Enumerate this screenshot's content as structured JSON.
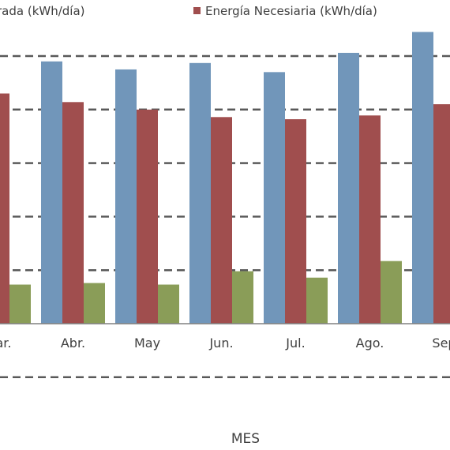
{
  "chart_data": {
    "type": "bar",
    "xlabel": "MES",
    "categories": [
      "ar.",
      "Abr.",
      "May",
      "Jun.",
      "Jul.",
      "Ago.",
      "Sep"
    ],
    "series": [
      {
        "name": "rada (kWh/día)",
        "color": "#7196BA",
        "values": [
          null,
          4.9,
          4.75,
          4.87,
          4.7,
          5.06,
          5.45
        ]
      },
      {
        "name": "Energía Necesiaria (kWh/día)",
        "color": "#A04E4E",
        "values": [
          4.3,
          4.14,
          4.0,
          3.86,
          3.82,
          3.89,
          4.1
        ]
      },
      {
        "name": "",
        "color": "#8A9D58",
        "values": [
          0.73,
          0.76,
          0.73,
          0.98,
          0.86,
          1.17,
          null
        ]
      }
    ],
    "ylim": [
      -1,
      6
    ],
    "grid": true,
    "legend": "top"
  }
}
